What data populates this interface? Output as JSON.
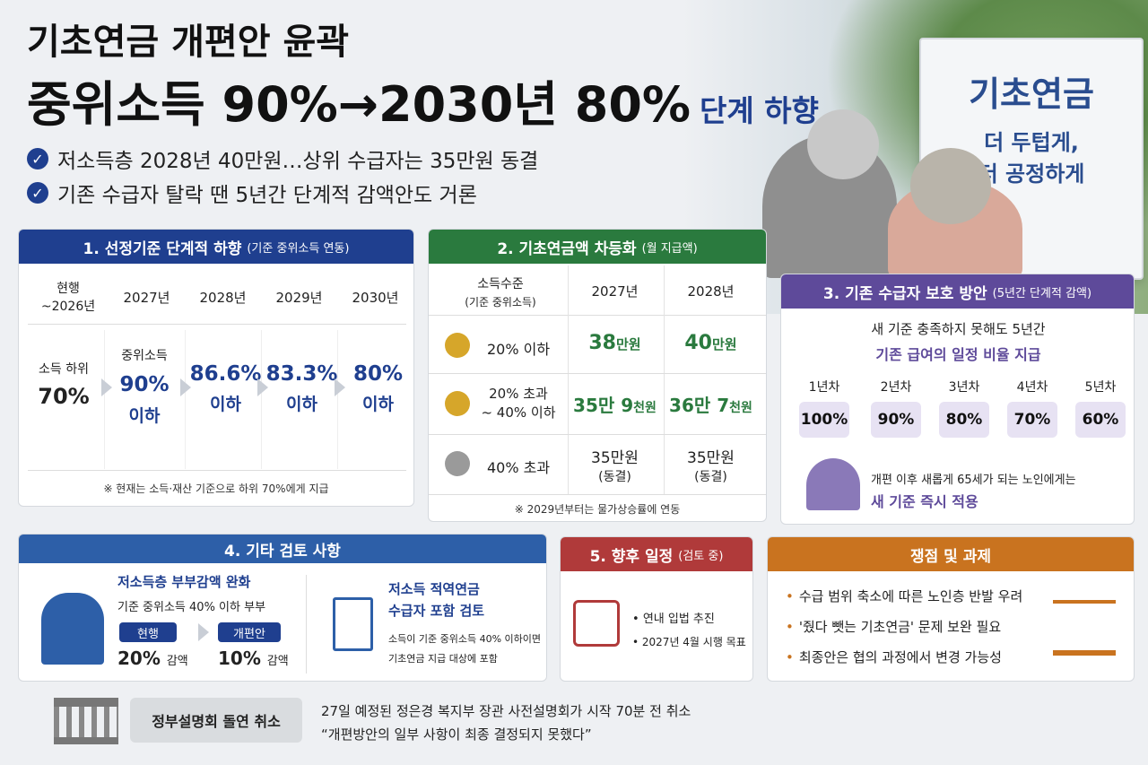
{
  "title": "기초연금 개편안 윤곽",
  "headline": "중위소득 90%→2030년 80%",
  "headline_sub": "단계 하향",
  "bullets": [
    "저소득층 2028년 40만원…상위 수급자는 35만원 동결",
    "기존 수급자 탈락 땐 5년간 단계적 감액안도 거론"
  ],
  "sign": {
    "title": "기초연금",
    "line1": "더 두텁게,",
    "line2": "더 공정하게"
  },
  "sec1": {
    "title": "1. 선정기준 단계적 하향",
    "sub": "(기준 중위소득 연동)",
    "cols": [
      "현행\n~2026년",
      "2027년",
      "2028년",
      "2029년",
      "2030년"
    ],
    "cur_label": "소득 하위",
    "cur_val": "70%",
    "v2027_label": "중위소득",
    "v2027": "90%",
    "v2028": "86.6%",
    "v2029": "83.3%",
    "v2030": "80%",
    "suffix": "이하",
    "note": "※ 현재는 소득·재산 기준으로 하위 70%에게 지급"
  },
  "sec2": {
    "title": "2. 기초연금액 차등화",
    "sub": "(월 지급액)",
    "h0": "소득수준",
    "h0b": "(기준 중위소득)",
    "h1": "2027년",
    "h2": "2028년",
    "rows": [
      {
        "level": "20% 이하",
        "a": "38",
        "au": "만원",
        "b": "40",
        "bu": "만원"
      },
      {
        "level": "20% 초과\n~ 40% 이하",
        "a": "35만 9",
        "au": "천원",
        "b": "36만 7",
        "bu": "천원"
      },
      {
        "level": "40% 초과",
        "a": "35만원",
        "au": "(동결)",
        "b": "35만원",
        "bu": "(동결)"
      }
    ],
    "note": "※ 2029년부터는 물가상승률에 연동"
  },
  "sec3": {
    "title": "3. 기존 수급자 보호 방안",
    "sub": "(5년간 단계적 감액)",
    "line1": "새 기준 충족하지 못해도 5년간",
    "line2": "기존 급여의 일정 비율 지급",
    "years": [
      "1년차",
      "2년차",
      "3년차",
      "4년차",
      "5년차"
    ],
    "rates": [
      "100%",
      "90%",
      "80%",
      "70%",
      "60%"
    ],
    "note1": "개편 이후 새롭게 65세가 되는 노인에게는",
    "note2": "새 기준 즉시 적용"
  },
  "sec4": {
    "title": "4. 기타 검토 사항",
    "a_title": "저소득층 부부감액 완화",
    "a_sub": "기준 중위소득 40% 이하 부부",
    "a_cur": "현행",
    "a_new": "개편안",
    "a_cur_v": "20%",
    "a_new_v": "10%",
    "a_unit": "감액",
    "b_title1": "저소득 적역연금",
    "b_title2": "수급자 포함 검토",
    "b_sub1": "소득이 기준 중위소득 40% 이하이면",
    "b_sub2": "기초연금 지급 대상에 포함"
  },
  "sec5": {
    "title": "5. 향후 일정",
    "sub": "(검토 중)",
    "items": [
      "연내 입법 추진",
      "2027년 4월 시행 목표"
    ]
  },
  "sec6": {
    "title": "쟁점 및 과제",
    "items": [
      "수급 범위 축소에 따른 노인층 반발 우려",
      "'줬다 뺏는 기초연금' 문제 보완 필요",
      "최종안은 협의 과정에서 변경 가능성"
    ]
  },
  "footer": {
    "badge": "정부설명회 돌연 취소",
    "line1": "27일 예정된 정은경 복지부 장관 사전설명회가 시작 70분 전 취소",
    "line2": "“개편방안의 일부 사항이 최종 결정되지 못했다”"
  },
  "colors": {
    "blue": "#1f3f8f",
    "green": "#2a7a3e",
    "purple": "#5e4a9a",
    "red": "#b03a3a",
    "orange": "#c9731f"
  }
}
